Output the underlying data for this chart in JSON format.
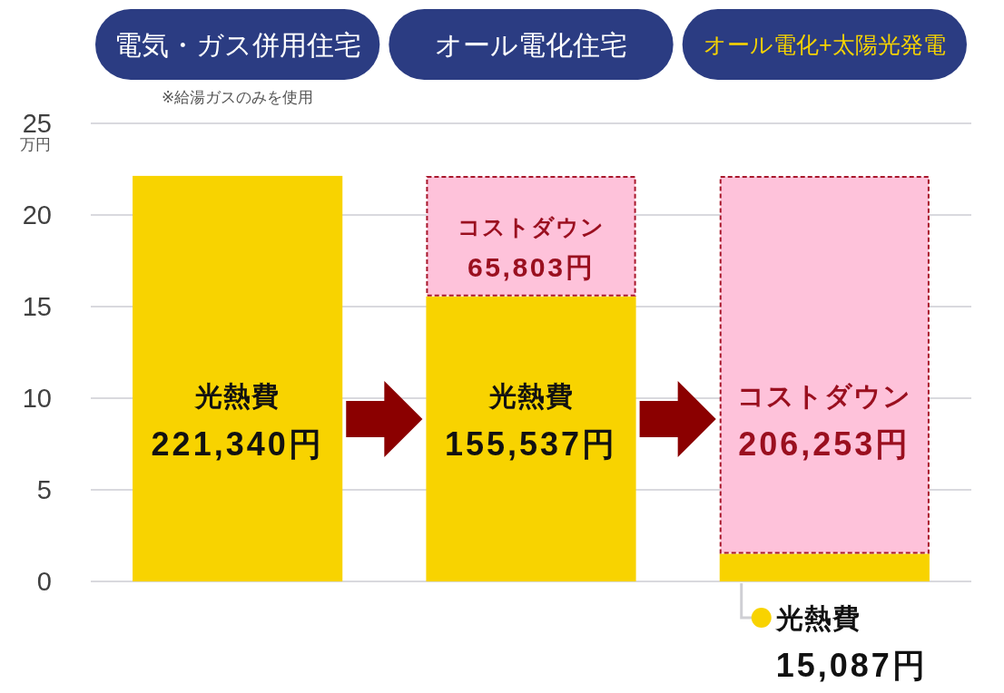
{
  "chart_data": {
    "type": "bar",
    "stacked": true,
    "categories": [
      "電気・ガス併用住宅",
      "オール電化住宅",
      "オール電化+太陽光発電"
    ],
    "ylabel": "万円",
    "ylim": [
      0,
      25
    ],
    "yticks": [
      0,
      5,
      10,
      15,
      20,
      25
    ],
    "grid": "y",
    "annotations": [
      "※給湯ガスのみを使用"
    ],
    "series": [
      {
        "color": "#f8d300",
        "values": [
          22.134,
          15.5537,
          1.5087
        ],
        "value_labels": [
          "光熱費\n221,340円",
          "光熱費\n155,537円",
          "光熱費\n15,087円"
        ]
      },
      {
        "color": "#fec2da",
        "values": [
          null,
          6.5803,
          20.6253
        ],
        "value_labels": [
          null,
          "コストダウン\n65,803円",
          "コストダウン\n206,253円"
        ]
      }
    ]
  }
}
